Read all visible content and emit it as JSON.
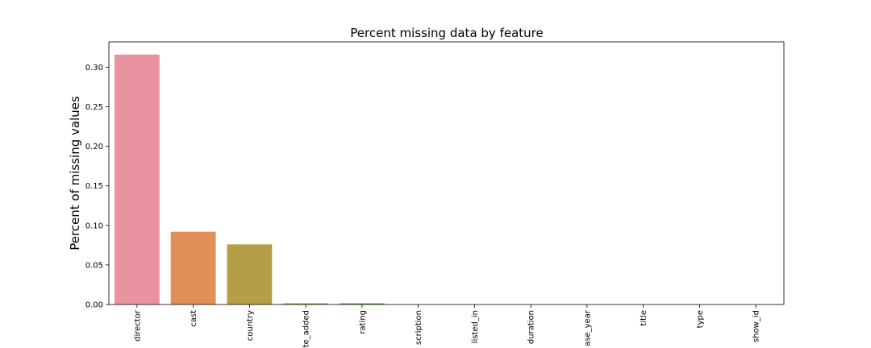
{
  "chart_data": {
    "type": "bar",
    "title": "Percent missing data by feature",
    "xlabel": "",
    "ylabel": "Percent of missing values",
    "categories": [
      "director",
      "cast",
      "country",
      "te_added",
      "rating",
      "scription",
      "listed_in",
      "duration",
      "ase_year",
      "title",
      "type",
      "show_id"
    ],
    "values": [
      0.316,
      0.092,
      0.076,
      0.0015,
      0.0015,
      0,
      0,
      0,
      0,
      0,
      0,
      0
    ],
    "ylim": [
      0,
      0.332
    ],
    "yticks": [
      0.0,
      0.05,
      0.1,
      0.15,
      0.2,
      0.25,
      0.3
    ],
    "ytick_labels": [
      "0.00",
      "0.05",
      "0.10",
      "0.15",
      "0.20",
      "0.25",
      "0.30"
    ],
    "colors": [
      "#e8939f",
      "#e19055",
      "#b59e48",
      "#98a53f",
      "#5db34b",
      "#4eb18a",
      "#4ab09a",
      "#4cabb4",
      "#58a2d4",
      "#9f96e2",
      "#d28be8",
      "#e58dc6"
    ],
    "grid": false,
    "legend": "none"
  }
}
